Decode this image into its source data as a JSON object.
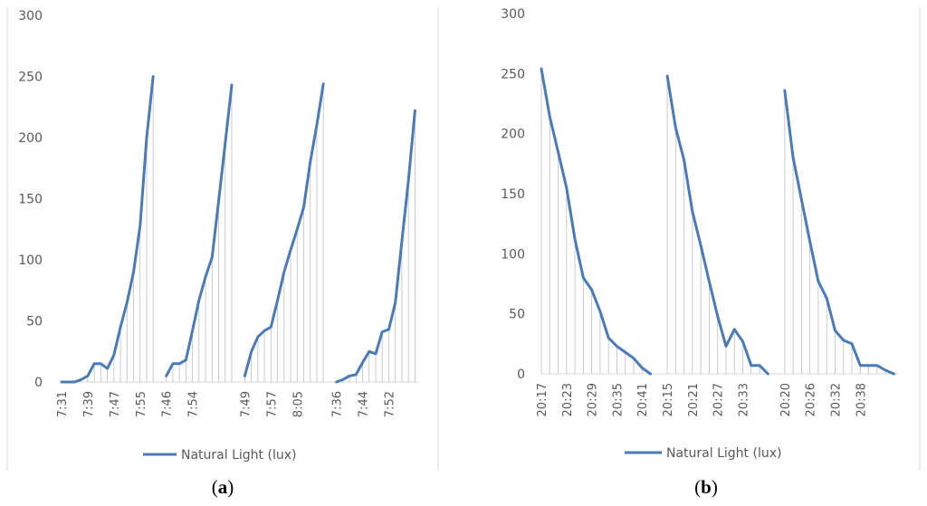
{
  "captions": {
    "a": "a",
    "b": "b"
  },
  "legend_label": "Natural Light (lux)",
  "colors": {
    "line": "#4a7ab8",
    "drop": "#bfbfbf",
    "axis": "#d9d9d9",
    "tick_text": "#595959"
  },
  "chart_data": [
    {
      "type": "line",
      "title": "",
      "xlabel": "",
      "ylabel": "",
      "ylim": [
        0,
        300
      ],
      "yticks": [
        0,
        50,
        100,
        150,
        200,
        250,
        300
      ],
      "grid": false,
      "legend_position": "bottom",
      "x_tick_labels": [
        "7:31",
        "7:39",
        "7:47",
        "7:55",
        "7:46",
        "7:54",
        "7:49",
        "7:57",
        "8:05",
        "7:36",
        "7:44",
        "7:52"
      ],
      "series": [
        {
          "name": "Natural Light (lux)",
          "segments": [
            [
              0,
              0,
              0,
              2,
              5,
              15,
              15,
              11,
              22,
              45,
              65,
              90,
              128,
              200,
              250
            ],
            [
              5,
              15,
              15,
              18,
              42,
              67,
              86,
              102,
              148,
              195,
              243
            ],
            [
              5,
              25,
              37,
              42,
              45,
              67,
              90,
              108,
              125,
              143,
              180,
              210,
              244
            ],
            [
              0,
              2,
              5,
              6,
              16,
              25,
              23,
              41,
              43,
              65,
              115,
              165,
              222
            ]
          ]
        }
      ]
    },
    {
      "type": "line",
      "title": "",
      "xlabel": "",
      "ylabel": "",
      "ylim": [
        0,
        300
      ],
      "yticks": [
        0,
        50,
        100,
        150,
        200,
        250,
        300
      ],
      "grid": false,
      "legend_position": "bottom",
      "x_tick_labels": [
        "20:17",
        "20:23",
        "20:29",
        "20:35",
        "20:41",
        "20:15",
        "20:21",
        "20:27",
        "20:33",
        "20:20",
        "20:26",
        "20:32",
        "20:38"
      ],
      "series": [
        {
          "name": "Natural Light (lux)",
          "segments": [
            [
              254,
              214,
              185,
              155,
              112,
              80,
              70,
              52,
              30,
              23,
              18,
              13,
              5,
              0
            ],
            [
              248,
              205,
              178,
              135,
              107,
              77,
              48,
              23,
              37,
              27,
              7,
              7,
              0
            ],
            [
              236,
              180,
              145,
              110,
              77,
              63,
              36,
              28,
              25,
              7,
              7,
              7,
              3,
              0
            ]
          ]
        }
      ]
    }
  ]
}
